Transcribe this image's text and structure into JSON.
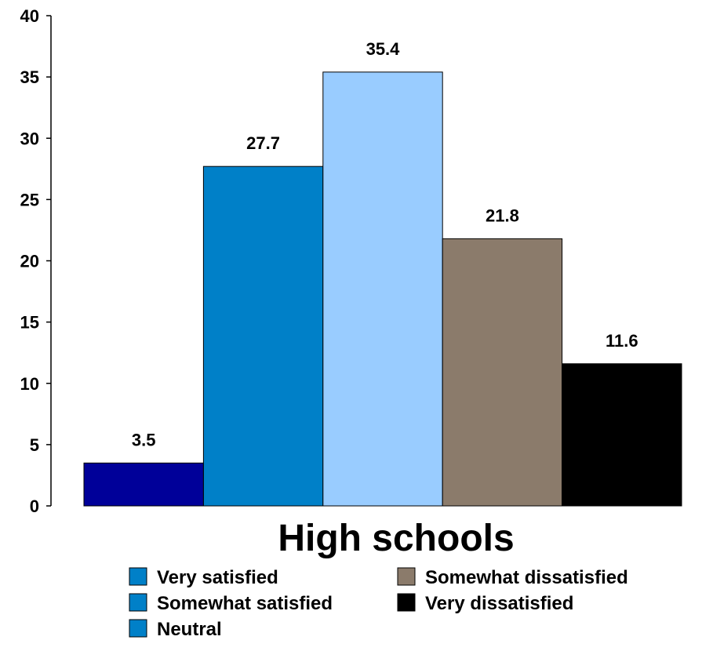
{
  "chart_data": {
    "type": "bar",
    "categories": [
      "High schools"
    ],
    "series": [
      {
        "name": "Very satisfied",
        "values": [
          3.5
        ],
        "color": "#000099",
        "legend_color": "#0080c8"
      },
      {
        "name": "Somewhat satisfied",
        "values": [
          27.7
        ],
        "color": "#0080c8",
        "legend_color": "#0080c8"
      },
      {
        "name": "Neutral",
        "values": [
          35.4
        ],
        "color": "#99ccff",
        "legend_color": "#0080c8"
      },
      {
        "name": "Somewhat dissatisfied",
        "values": [
          21.8
        ],
        "color": "#8b7b6b",
        "legend_color": "#8b7b6b"
      },
      {
        "name": "Very dissatisfied",
        "values": [
          11.6
        ],
        "color": "#000000",
        "legend_color": "#000000"
      }
    ],
    "ylim": [
      0,
      40
    ],
    "yticks": [
      0,
      5,
      10,
      15,
      20,
      25,
      30,
      35,
      40
    ],
    "grid": false,
    "legend_position": "bottom",
    "title": "",
    "xlabel": "",
    "ylabel": ""
  }
}
